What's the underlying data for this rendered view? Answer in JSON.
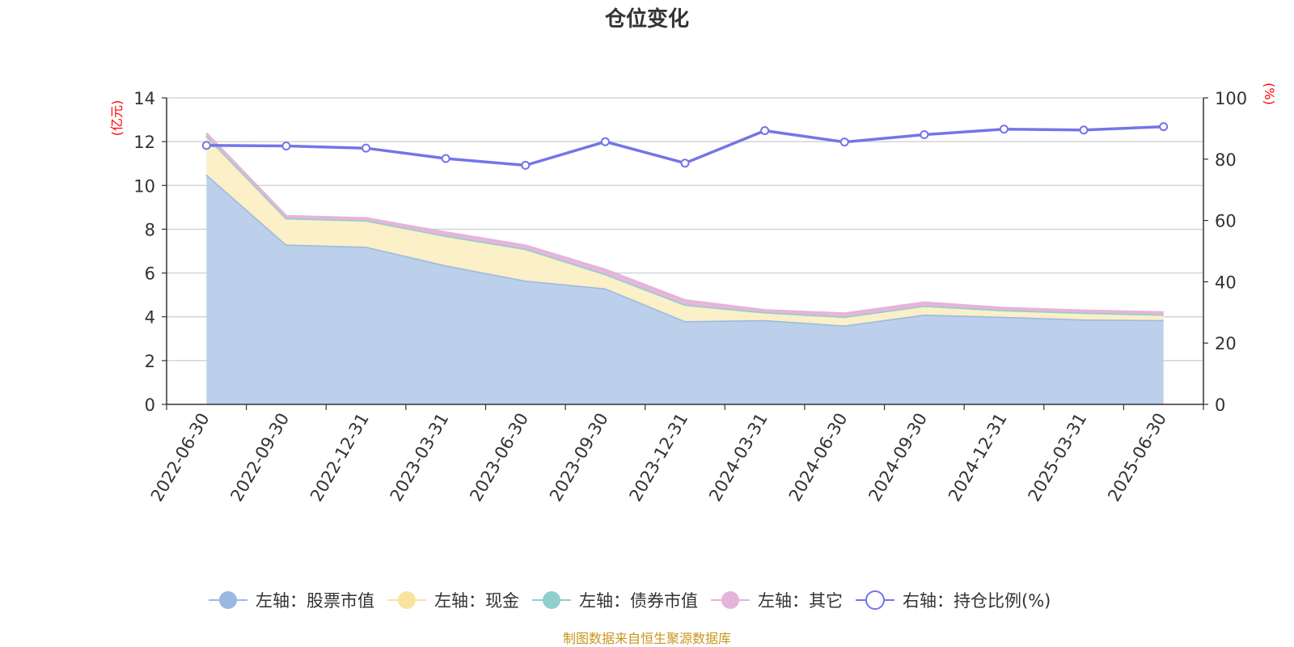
{
  "chart_data": {
    "type": "area",
    "title": "仓位变化",
    "categories": [
      "2022-06-30",
      "2022-09-30",
      "2022-12-31",
      "2023-03-31",
      "2023-06-30",
      "2023-09-30",
      "2023-12-31",
      "2024-03-31",
      "2024-06-30",
      "2024-09-30",
      "2024-12-31",
      "2025-03-31",
      "2025-06-30"
    ],
    "y_left": {
      "unit": "(亿元)",
      "ylim": [
        0,
        14
      ],
      "ticks": [
        0,
        2,
        4,
        6,
        8,
        10,
        12,
        14
      ]
    },
    "y_right": {
      "unit": "(%)",
      "ylim": [
        0,
        100
      ],
      "ticks": [
        0,
        20,
        40,
        60,
        80,
        100
      ]
    },
    "series": [
      {
        "name": "左轴：股票市值",
        "axis": "left",
        "type": "area",
        "stacked": true,
        "color": "#9bb8e3",
        "fill": "#b8cdea",
        "values": [
          10.5,
          7.3,
          7.2,
          6.35,
          5.65,
          5.3,
          3.8,
          3.85,
          3.6,
          4.1,
          4.0,
          3.88,
          3.85
        ]
      },
      {
        "name": "左轴：现金",
        "axis": "left",
        "type": "area",
        "stacked": true,
        "color": "#f7e4a0",
        "fill": "#fbefc4",
        "values": [
          1.7,
          1.2,
          1.2,
          1.35,
          1.45,
          0.65,
          0.75,
          0.35,
          0.4,
          0.4,
          0.3,
          0.3,
          0.25
        ]
      },
      {
        "name": "左轴：债券市值",
        "axis": "left",
        "type": "area",
        "stacked": true,
        "color": "#8fd0cf",
        "fill": "#8fd0cf",
        "values": [
          0.08,
          0.0,
          0.0,
          0.0,
          0.0,
          0.0,
          0.0,
          0.0,
          0.0,
          0.0,
          0.0,
          0.0,
          0.0
        ]
      },
      {
        "name": "左轴：其它",
        "axis": "left",
        "type": "area",
        "stacked": true,
        "color": "#e6b4d9",
        "fill": "#e6b4d9",
        "values": [
          0.1,
          0.1,
          0.1,
          0.15,
          0.15,
          0.2,
          0.2,
          0.1,
          0.15,
          0.15,
          0.1,
          0.1,
          0.1
        ]
      },
      {
        "name": "右轴：持仓比例(%)",
        "axis": "right",
        "type": "line",
        "color": "#7375e8",
        "values": [
          84.5,
          84.3,
          83.6,
          80.2,
          78.0,
          85.7,
          78.7,
          89.3,
          85.6,
          88.0,
          89.8,
          89.5,
          90.6
        ]
      }
    ],
    "legend_position": "bottom",
    "grid": true
  },
  "source_text": "制图数据来自恒生聚源数据库"
}
